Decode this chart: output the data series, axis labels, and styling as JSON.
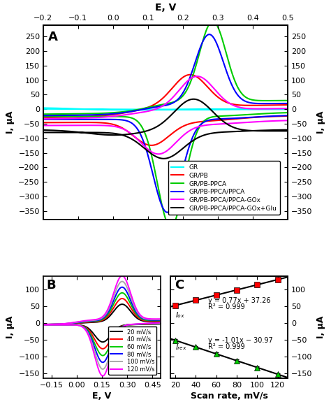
{
  "panel_A": {
    "xlabel_top": "E, V",
    "ylabel": "I, μA",
    "xlim": [
      -0.2,
      0.5
    ],
    "ylim": [
      -380,
      290
    ],
    "yticks": [
      -350,
      -300,
      -250,
      -200,
      -150,
      -100,
      -50,
      0,
      50,
      100,
      150,
      200,
      250
    ],
    "xticks_top": [
      -0.2,
      -0.1,
      0.0,
      0.1,
      0.2,
      0.3,
      0.4,
      0.5
    ],
    "legend_labels": [
      "GR",
      "GR/PB",
      "GR/PB-PPCA",
      "GR/PB-PPCA/PPCA",
      "GR/PB-PPCA/PPCA-GOx",
      "GR/PB-PPCA/PPCA-GOx+Glu"
    ],
    "legend_colors": [
      "cyan",
      "#ff0000",
      "#00cc00",
      "#0000ff",
      "#ff00ff",
      "#000000"
    ]
  },
  "panel_B": {
    "xlabel": "E, V",
    "ylabel": "I, μA",
    "xlim": [
      -0.2,
      0.5
    ],
    "ylim": [
      -165,
      140
    ],
    "yticks": [
      -150,
      -100,
      -50,
      0,
      50,
      100
    ],
    "xticks": [
      -0.15,
      0.0,
      0.15,
      0.3,
      0.45
    ],
    "legend_labels": [
      "20 mV/s",
      "40 mV/s",
      "60 mV/s",
      "80 mV/s",
      "100 mV/s",
      "120 mV/s"
    ],
    "legend_colors": [
      "#000000",
      "#ff0000",
      "#00cc00",
      "#0000ff",
      "#aaaaaa",
      "#ff00ff"
    ]
  },
  "panel_C": {
    "xlabel": "Scan rate, mV/s",
    "ylabel": "I, μA",
    "xlim": [
      15,
      130
    ],
    "ylim": [
      -165,
      140
    ],
    "yticks": [
      -150,
      -100,
      -50,
      0,
      50,
      100
    ],
    "xticks": [
      20,
      40,
      60,
      80,
      100,
      120
    ],
    "scan_rates": [
      20,
      40,
      60,
      80,
      100,
      120
    ],
    "iox_slope": 0.77,
    "iox_intercept": 37.26,
    "ired_slope": -1.01,
    "ired_intercept": -30.97,
    "ox_label": "Iₒₓ",
    "red_label": "Iᵣₑₓ",
    "ox_eq": "y = 0.77x + 37.26",
    "ox_r2": "R² = 0.999",
    "red_eq": "y = -1.01x − 30.97",
    "red_r2": "R² = 0.999"
  }
}
